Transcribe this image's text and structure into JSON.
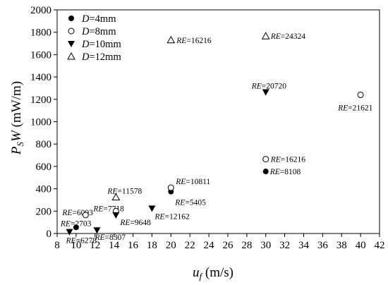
{
  "chart_data": {
    "type": "scatter",
    "title": "",
    "xlabel": {
      "main": "u",
      "sub": "f",
      "unit": " (m/s)"
    },
    "ylabel": {
      "main": "P",
      "sub": "S",
      "tail": "W",
      "unit": "  (mW/m)"
    },
    "xlim": [
      8,
      42
    ],
    "ylim": [
      0,
      2000
    ],
    "xticks": [
      8,
      10,
      12,
      14,
      16,
      18,
      20,
      22,
      24,
      26,
      28,
      30,
      32,
      34,
      36,
      38,
      40,
      42
    ],
    "yticks": [
      0,
      200,
      400,
      600,
      800,
      1000,
      1200,
      1400,
      1600,
      1800,
      2000
    ],
    "grid": false,
    "legend_position": "top-left",
    "series": [
      {
        "name_italic": "D",
        "name_rest": "=4mm",
        "marker": "filled-circle",
        "points": [
          {
            "x": 10,
            "y": 55,
            "label": "2703"
          },
          {
            "x": 20,
            "y": 375,
            "label": "5405"
          },
          {
            "x": 30,
            "y": 555,
            "label": "8108"
          }
        ]
      },
      {
        "name_italic": "D",
        "name_rest": "=8mm",
        "marker": "open-circle",
        "points": [
          {
            "x": 11,
            "y": 165,
            "label": "6093"
          },
          {
            "x": 14.2,
            "y": 200,
            "label": "7718"
          },
          {
            "x": 20,
            "y": 410,
            "label": "10811"
          },
          {
            "x": 30,
            "y": 665,
            "label": "16216"
          },
          {
            "x": 40,
            "y": 1240,
            "label": "21621"
          }
        ]
      },
      {
        "name_italic": "D",
        "name_rest": "=10mm",
        "marker": "filled-triangle-down",
        "points": [
          {
            "x": 9.3,
            "y": 15,
            "label": "6278"
          },
          {
            "x": 12.2,
            "y": 30,
            "label": "8307"
          },
          {
            "x": 14.2,
            "y": 165,
            "label": "9648"
          },
          {
            "x": 18,
            "y": 225,
            "label": "12162"
          },
          {
            "x": 30,
            "y": 1265,
            "label": "20720"
          }
        ]
      },
      {
        "name_italic": "D",
        "name_rest": "=12mm",
        "marker": "open-triangle-up",
        "points": [
          {
            "x": 14.2,
            "y": 325,
            "label": "11578"
          },
          {
            "x": 20,
            "y": 1730,
            "label": "16216"
          },
          {
            "x": 30,
            "y": 1765,
            "label": "24324"
          }
        ]
      }
    ],
    "annotation_prefix": "RE",
    "annotation_equals": "="
  }
}
